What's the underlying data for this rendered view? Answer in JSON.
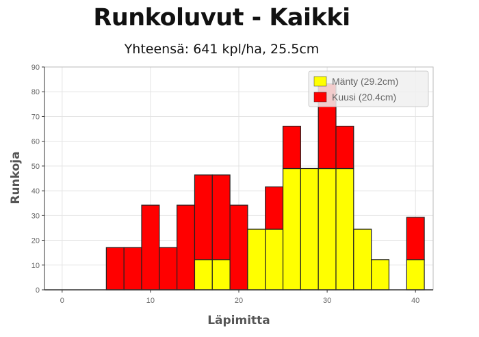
{
  "chart_data": {
    "type": "bar",
    "stacked": true,
    "title": "Runkoluvut - Kaikki",
    "subtitle": "Yhteensä: 641 kpl/ha, 25.5cm",
    "xlabel": "Läpimitta",
    "ylabel": "Runkoja",
    "xlim": [
      -2,
      42
    ],
    "ylim": [
      0,
      90
    ],
    "xticks": [
      0,
      10,
      20,
      30,
      40
    ],
    "yticks": [
      0,
      10,
      20,
      30,
      40,
      50,
      60,
      70,
      80,
      90
    ],
    "bin_width": 2,
    "x": [
      0,
      2,
      4,
      6,
      8,
      10,
      12,
      14,
      16,
      18,
      20,
      22,
      24,
      26,
      28,
      30,
      32,
      34,
      36,
      38,
      40
    ],
    "series": [
      {
        "name": "Mänty (29.2cm)",
        "color": "#ffff00",
        "values": [
          0,
          0,
          0,
          0,
          0,
          0,
          0,
          0,
          12.2,
          12.2,
          0,
          24.5,
          24.5,
          49,
          49,
          49,
          49,
          24.5,
          12.2,
          0,
          12.2
        ]
      },
      {
        "name": "Kuusi (20.4cm)",
        "color": "#ff0000",
        "values": [
          0,
          0,
          0,
          17.1,
          17.1,
          34.2,
          17.1,
          34.2,
          34.2,
          34.2,
          34.2,
          0,
          17.1,
          17.1,
          0,
          34.2,
          17.1,
          0,
          0,
          0,
          17.1
        ]
      }
    ],
    "grid": true,
    "legend_position": "top-right"
  }
}
